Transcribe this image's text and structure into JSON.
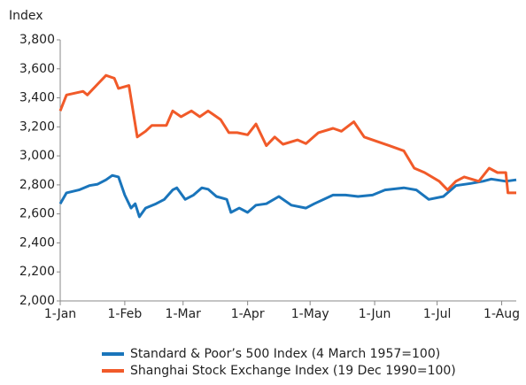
{
  "chart_data": {
    "type": "line",
    "y_label": "Index",
    "xlim": [
      "1-Jan",
      "8-Aug"
    ],
    "xticks": [
      "1-Jan",
      "1-Feb",
      "1-Mar",
      "1-Apr",
      "1-May",
      "1-Jun",
      "1-Jul",
      "1-Aug"
    ],
    "ylim": [
      2000,
      3800
    ],
    "yticks": [
      {
        "value": 2000,
        "label": "2,000"
      },
      {
        "value": 2200,
        "label": "2,200"
      },
      {
        "value": 2400,
        "label": "2,400"
      },
      {
        "value": 2600,
        "label": "2,600"
      },
      {
        "value": 2800,
        "label": "2,800"
      },
      {
        "value": 3000,
        "label": "3,000"
      },
      {
        "value": 3200,
        "label": "3,200"
      },
      {
        "value": 3400,
        "label": "3,400"
      },
      {
        "value": 3600,
        "label": "3,600"
      },
      {
        "value": 3800,
        "label": "3,800"
      }
    ],
    "grid": false,
    "legend": "bottom",
    "series": [
      {
        "name": "Standard & Poor’s 500 Index (4 March 1957=100)",
        "color": "#1a75bb",
        "x": [
          "1-Jan",
          "4-Jan",
          "10-Jan",
          "15-Jan",
          "19-Jan",
          "23-Jan",
          "26-Jan",
          "29-Jan",
          "1-Feb",
          "4-Feb",
          "6-Feb",
          "8-Feb",
          "11-Feb",
          "16-Feb",
          "20-Feb",
          "24-Feb",
          "26-Feb",
          "2-Mar",
          "6-Mar",
          "10-Mar",
          "13-Mar",
          "17-Mar",
          "22-Mar",
          "24-Mar",
          "28-Mar",
          "1-Apr",
          "5-Apr",
          "10-Apr",
          "16-Apr",
          "22-Apr",
          "29-Apr",
          "3-May",
          "12-May",
          "18-May",
          "24-May",
          "31-May",
          "6-Jun",
          "15-Jun",
          "21-Jun",
          "27-Jun",
          "4-Jul",
          "10-Jul",
          "17-Jul",
          "23-Jul",
          "27-Jul",
          "3-Aug",
          "8-Aug"
        ],
        "values": [
          2670,
          2745,
          2765,
          2795,
          2805,
          2835,
          2865,
          2855,
          2730,
          2640,
          2670,
          2580,
          2640,
          2670,
          2700,
          2765,
          2780,
          2700,
          2730,
          2780,
          2770,
          2720,
          2700,
          2610,
          2640,
          2610,
          2660,
          2670,
          2720,
          2660,
          2640,
          2670,
          2730,
          2730,
          2720,
          2730,
          2765,
          2780,
          2765,
          2700,
          2720,
          2795,
          2810,
          2825,
          2840,
          2825,
          2835
        ]
      },
      {
        "name": "Shanghai Stock Exchange Index (19 Dec 1990=100)",
        "color": "#f15a29",
        "x": [
          "1-Jan",
          "4-Jan",
          "12-Jan",
          "14-Jan",
          "19-Jan",
          "23-Jan",
          "27-Jan",
          "29-Jan",
          "3-Feb",
          "7-Feb",
          "11-Feb",
          "14-Feb",
          "21-Feb",
          "24-Feb",
          "28-Feb",
          "5-Mar",
          "9-Mar",
          "13-Mar",
          "19-Mar",
          "23-Mar",
          "27-Mar",
          "1-Apr",
          "5-Apr",
          "10-Apr",
          "14-Apr",
          "18-Apr",
          "25-Apr",
          "29-Apr",
          "5-May",
          "12-May",
          "16-May",
          "22-May",
          "27-May",
          "2-Jun",
          "8-Jun",
          "15-Jun",
          "20-Jun",
          "25-Jun",
          "2-Jul",
          "6-Jul",
          "10-Jul",
          "14-Jul",
          "21-Jul",
          "26-Jul",
          "30-Jul",
          "3-Aug",
          "4-Aug",
          "8-Aug"
        ],
        "values": [
          3310,
          3420,
          3445,
          3420,
          3495,
          3555,
          3535,
          3465,
          3485,
          3130,
          3170,
          3210,
          3210,
          3310,
          3270,
          3310,
          3270,
          3310,
          3250,
          3160,
          3160,
          3145,
          3220,
          3070,
          3130,
          3080,
          3110,
          3085,
          3160,
          3190,
          3170,
          3235,
          3130,
          3100,
          3070,
          3035,
          2915,
          2885,
          2825,
          2765,
          2825,
          2855,
          2825,
          2915,
          2885,
          2885,
          2745,
          2745
        ]
      }
    ]
  }
}
